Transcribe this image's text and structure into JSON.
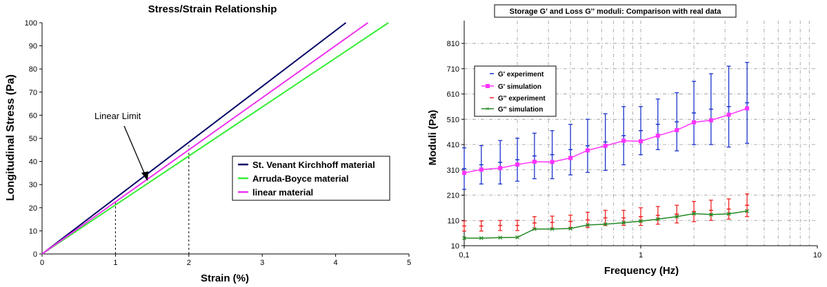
{
  "chart_data": [
    {
      "type": "line",
      "title": "Stress/Strain Relationship",
      "xlabel": "Strain (%)",
      "ylabel": "Longitudinal Stress (Pa)",
      "xlim": [
        0,
        5
      ],
      "ylim": [
        0,
        100
      ],
      "xticks": [
        0,
        1,
        2,
        3,
        4,
        5
      ],
      "yticks": [
        0,
        10,
        20,
        30,
        40,
        50,
        60,
        70,
        80,
        90,
        100
      ],
      "grid": false,
      "legend_position": "center-right",
      "series": [
        {
          "name": "St. Venant Kirchhoff material",
          "color": "#000066",
          "x": [
            0,
            4.14
          ],
          "y": [
            0,
            100
          ]
        },
        {
          "name": "Arruda-Boyce material",
          "color": "#33ee33",
          "x": [
            0,
            4.72
          ],
          "y": [
            0,
            100
          ]
        },
        {
          "name": "linear material",
          "color": "#ee33ee",
          "x": [
            0,
            4.44
          ],
          "y": [
            0,
            100
          ]
        }
      ],
      "annotations": [
        {
          "text": "Linear Limit",
          "text_x": 1.0,
          "text_y": 60,
          "arrow_x": 1.44,
          "arrow_y": 32
        }
      ],
      "reference_lines": [
        {
          "x": 1,
          "y_top": 23
        },
        {
          "x": 2,
          "y_top": 47
        }
      ]
    },
    {
      "type": "line",
      "title": "Storage G' and Loss G'' moduli: Comparison with real data",
      "xlabel": "Frequency (Hz)",
      "ylabel": "Moduli (Pa)",
      "xscale": "log",
      "xlim": [
        0.1,
        10
      ],
      "ylim": [
        10,
        900
      ],
      "xticks": [
        "0,1",
        "1",
        "10"
      ],
      "yticks": [
        10,
        110,
        210,
        310,
        410,
        510,
        610,
        710,
        810
      ],
      "grid": true,
      "legend_position": "top-left",
      "x": [
        0.1,
        0.125,
        0.16,
        0.2,
        0.25,
        0.315,
        0.4,
        0.5,
        0.63,
        0.8,
        1.0,
        1.25,
        1.6,
        2.0,
        2.5,
        3.15,
        4.0
      ],
      "series": [
        {
          "name": "G' experiment",
          "color": "#1a33cc",
          "values": [
            315,
            330,
            340,
            350,
            365,
            370,
            390,
            405,
            420,
            445,
            465,
            490,
            500,
            535,
            550,
            560,
            575
          ],
          "error": [
            82,
            76,
            86,
            85,
            90,
            95,
            100,
            105,
            112,
            115,
            95,
            100,
            115,
            125,
            140,
            160,
            160
          ]
        },
        {
          "name": "G' simulation",
          "color": "#ff33ff",
          "values": [
            298,
            311,
            317,
            331,
            342,
            341,
            357,
            387,
            405,
            425,
            423,
            445,
            467,
            498,
            506,
            528,
            553
          ]
        },
        {
          "name": "G'' experiment",
          "color": "#ee2222",
          "values": [
            88,
            88,
            90,
            90,
            100,
            102,
            106,
            112,
            120,
            120,
            125,
            130,
            135,
            145,
            150,
            155,
            170
          ],
          "error": [
            20,
            20,
            20,
            20,
            25,
            25,
            25,
            30,
            30,
            30,
            35,
            35,
            35,
            40,
            40,
            40,
            45
          ]
        },
        {
          "name": "G'' simulation",
          "color": "#228822",
          "values": [
            40,
            40,
            42,
            43,
            76,
            76,
            78,
            92,
            95,
            101,
            107,
            115,
            125,
            137,
            133,
            136,
            147
          ]
        }
      ]
    }
  ]
}
